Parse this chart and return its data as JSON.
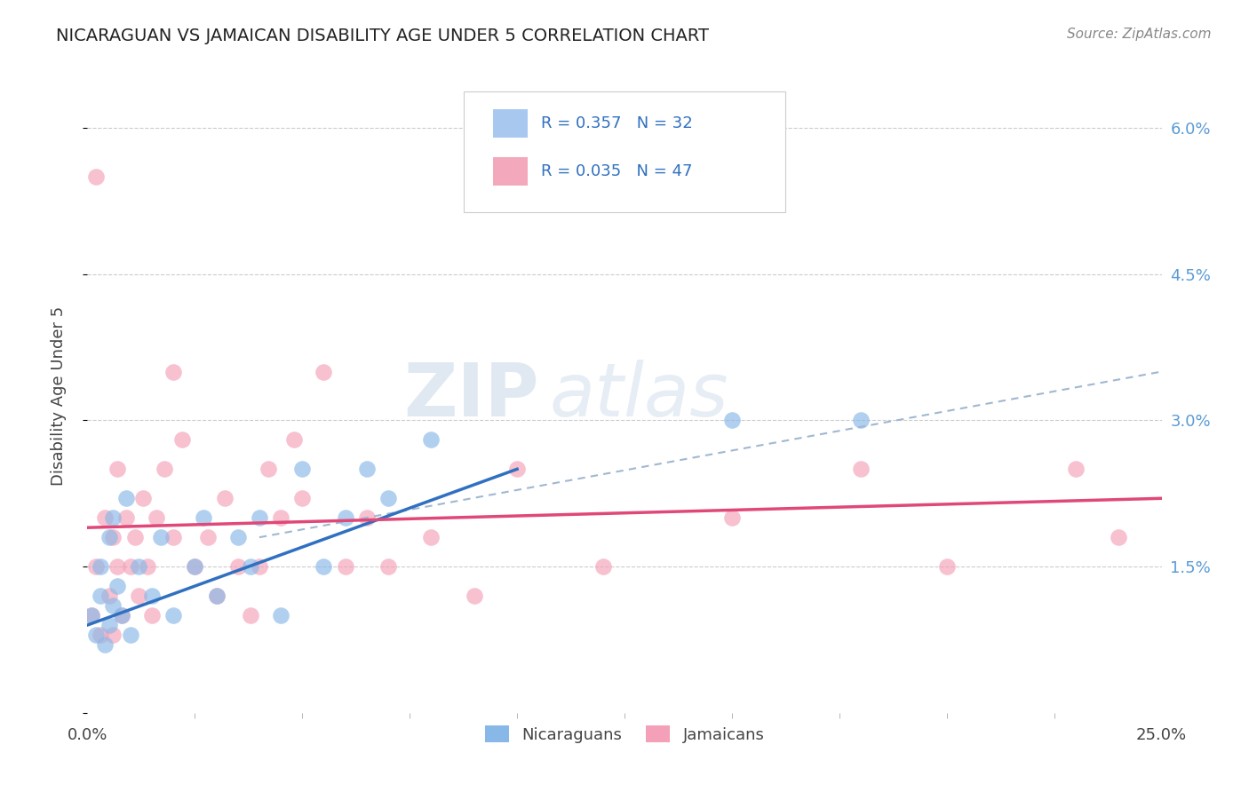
{
  "title": "NICARAGUAN VS JAMAICAN DISABILITY AGE UNDER 5 CORRELATION CHART",
  "source": "Source: ZipAtlas.com",
  "ylabel": "Disability Age Under 5",
  "yticks": [
    0.0,
    0.015,
    0.03,
    0.045,
    0.06
  ],
  "ytick_labels": [
    "",
    "1.5%",
    "3.0%",
    "4.5%",
    "6.0%"
  ],
  "xlim": [
    0.0,
    0.25
  ],
  "ylim": [
    0.0,
    0.065
  ],
  "legend_entries": [
    {
      "label_r": "R = 0.357",
      "label_n": "N = 32",
      "color": "#a8c8f0"
    },
    {
      "label_r": "R = 0.035",
      "label_n": "N = 47",
      "color": "#f4a8bb"
    }
  ],
  "legend_bottom": [
    "Nicaraguans",
    "Jamaicans"
  ],
  "watermark": "ZIPatlas",
  "nicaraguan_color": "#88b8e8",
  "jamaican_color": "#f4a0b8",
  "blue_line_color": "#3070c0",
  "pink_line_color": "#e04878",
  "dash_line_color": "#a0b8d0",
  "nicaraguan_x": [
    0.001,
    0.002,
    0.003,
    0.003,
    0.004,
    0.005,
    0.005,
    0.006,
    0.006,
    0.007,
    0.008,
    0.009,
    0.01,
    0.012,
    0.015,
    0.017,
    0.02,
    0.025,
    0.027,
    0.03,
    0.035,
    0.038,
    0.04,
    0.045,
    0.05,
    0.055,
    0.06,
    0.065,
    0.07,
    0.08,
    0.15,
    0.18
  ],
  "nicaraguan_y": [
    0.01,
    0.008,
    0.012,
    0.015,
    0.007,
    0.009,
    0.018,
    0.011,
    0.02,
    0.013,
    0.01,
    0.022,
    0.008,
    0.015,
    0.012,
    0.018,
    0.01,
    0.015,
    0.02,
    0.012,
    0.018,
    0.015,
    0.02,
    0.01,
    0.025,
    0.015,
    0.02,
    0.025,
    0.022,
    0.028,
    0.03,
    0.03
  ],
  "jamaican_x": [
    0.001,
    0.002,
    0.002,
    0.003,
    0.004,
    0.005,
    0.006,
    0.006,
    0.007,
    0.007,
    0.008,
    0.009,
    0.01,
    0.011,
    0.012,
    0.013,
    0.014,
    0.015,
    0.016,
    0.018,
    0.02,
    0.02,
    0.022,
    0.025,
    0.028,
    0.03,
    0.032,
    0.035,
    0.038,
    0.04,
    0.042,
    0.045,
    0.048,
    0.05,
    0.055,
    0.06,
    0.065,
    0.07,
    0.08,
    0.09,
    0.1,
    0.12,
    0.15,
    0.18,
    0.2,
    0.23,
    0.24
  ],
  "jamaican_y": [
    0.01,
    0.015,
    0.055,
    0.008,
    0.02,
    0.012,
    0.008,
    0.018,
    0.015,
    0.025,
    0.01,
    0.02,
    0.015,
    0.018,
    0.012,
    0.022,
    0.015,
    0.01,
    0.02,
    0.025,
    0.018,
    0.035,
    0.028,
    0.015,
    0.018,
    0.012,
    0.022,
    0.015,
    0.01,
    0.015,
    0.025,
    0.02,
    0.028,
    0.022,
    0.035,
    0.015,
    0.02,
    0.015,
    0.018,
    0.012,
    0.025,
    0.015,
    0.02,
    0.025,
    0.015,
    0.025,
    0.018
  ],
  "blue_line_x0": 0.0,
  "blue_line_y0": 0.009,
  "blue_line_x1": 0.1,
  "blue_line_y1": 0.025,
  "pink_line_x0": 0.0,
  "pink_line_y0": 0.019,
  "pink_line_x1": 0.25,
  "pink_line_y1": 0.022,
  "dash_line_x0": 0.04,
  "dash_line_y0": 0.018,
  "dash_line_x1": 0.25,
  "dash_line_y1": 0.035
}
